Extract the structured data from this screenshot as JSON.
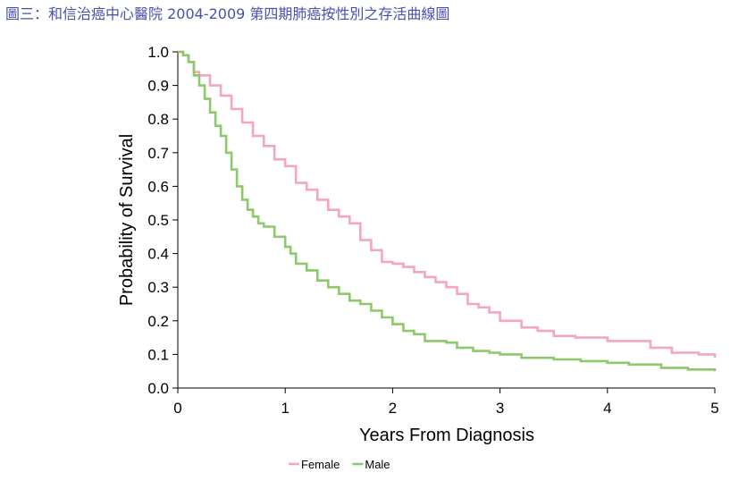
{
  "figure": {
    "title": "圖三：和信治癌中心醫院 2004-2009 第四期肺癌按性別之存活曲線圖",
    "title_color": "#4a4fb0"
  },
  "chart_data": {
    "type": "line",
    "title": "",
    "xlabel": "Years From Diagnosis",
    "ylabel": "Probability of Survival",
    "xlim": [
      0,
      5
    ],
    "ylim": [
      0,
      1
    ],
    "xticks": [
      0,
      1,
      2,
      3,
      4,
      5
    ],
    "yticks": [
      0.0,
      0.1,
      0.2,
      0.3,
      0.4,
      0.5,
      0.6,
      0.7,
      0.8,
      0.9,
      1.0
    ],
    "ytick_labels": [
      "0.0",
      "0.1",
      "0.2",
      "0.3",
      "0.4",
      "0.5",
      "0.6",
      "0.7",
      "0.8",
      "0.9",
      "1.0"
    ],
    "xtick_labels": [
      "0",
      "1",
      "2",
      "3",
      "4",
      "5"
    ],
    "step": true,
    "grid": false,
    "legend_position": "bottom",
    "series": [
      {
        "name": "Female",
        "color": "#f4a6bd",
        "x": [
          0,
          0.05,
          0.1,
          0.15,
          0.2,
          0.3,
          0.4,
          0.5,
          0.6,
          0.7,
          0.8,
          0.9,
          1.0,
          1.1,
          1.2,
          1.3,
          1.4,
          1.5,
          1.6,
          1.7,
          1.8,
          1.9,
          2.0,
          2.1,
          2.2,
          2.3,
          2.4,
          2.5,
          2.6,
          2.7,
          2.8,
          2.9,
          3.0,
          3.2,
          3.35,
          3.5,
          3.7,
          4.0,
          4.15,
          4.4,
          4.6,
          4.85,
          5.0
        ],
        "y": [
          1.0,
          0.99,
          0.97,
          0.94,
          0.93,
          0.9,
          0.87,
          0.83,
          0.79,
          0.75,
          0.72,
          0.68,
          0.66,
          0.61,
          0.59,
          0.56,
          0.53,
          0.51,
          0.49,
          0.44,
          0.41,
          0.375,
          0.37,
          0.36,
          0.345,
          0.33,
          0.315,
          0.3,
          0.28,
          0.25,
          0.24,
          0.225,
          0.2,
          0.18,
          0.17,
          0.155,
          0.15,
          0.14,
          0.14,
          0.12,
          0.105,
          0.1,
          0.09
        ]
      },
      {
        "name": "Male",
        "color": "#8cc96a",
        "x": [
          0,
          0.05,
          0.1,
          0.15,
          0.2,
          0.25,
          0.3,
          0.35,
          0.4,
          0.45,
          0.5,
          0.55,
          0.6,
          0.65,
          0.7,
          0.75,
          0.8,
          0.9,
          1.0,
          1.05,
          1.1,
          1.2,
          1.3,
          1.4,
          1.5,
          1.6,
          1.7,
          1.8,
          1.9,
          2.0,
          2.1,
          2.2,
          2.3,
          2.5,
          2.6,
          2.75,
          2.9,
          3.0,
          3.2,
          3.5,
          3.75,
          4.0,
          4.2,
          4.5,
          4.75,
          5.0
        ],
        "y": [
          1.0,
          0.99,
          0.97,
          0.93,
          0.9,
          0.86,
          0.82,
          0.78,
          0.75,
          0.7,
          0.65,
          0.6,
          0.56,
          0.53,
          0.51,
          0.49,
          0.48,
          0.45,
          0.42,
          0.4,
          0.37,
          0.35,
          0.32,
          0.3,
          0.28,
          0.26,
          0.25,
          0.23,
          0.21,
          0.19,
          0.17,
          0.16,
          0.14,
          0.135,
          0.12,
          0.11,
          0.105,
          0.1,
          0.09,
          0.085,
          0.08,
          0.075,
          0.07,
          0.06,
          0.055,
          0.05
        ]
      }
    ]
  }
}
